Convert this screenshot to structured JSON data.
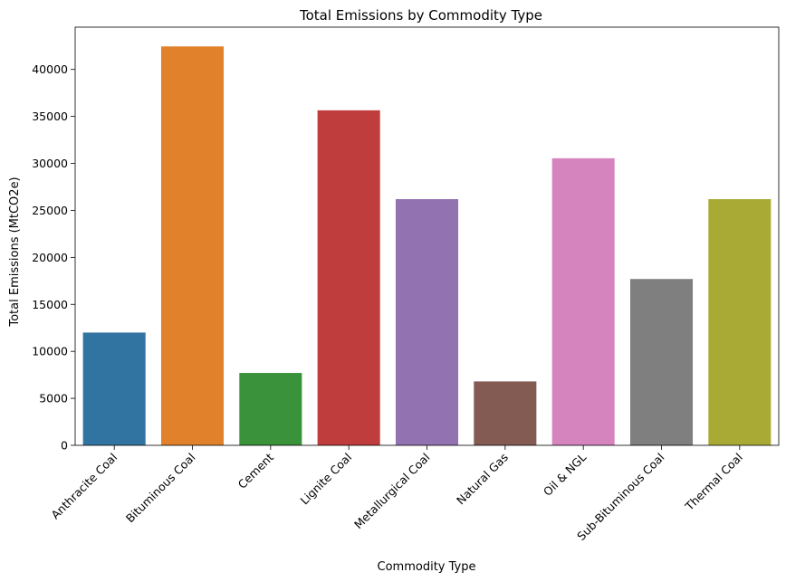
{
  "chart_data": {
    "type": "bar",
    "title": "Total Emissions by Commodity Type",
    "xlabel": "Commodity Type",
    "ylabel": "Total Emissions (MtCO2e)",
    "categories": [
      "Anthracite Coal",
      "Bituminous Coal",
      "Cement",
      "Lignite Coal",
      "Metallurgical Coal",
      "Natural Gas",
      "Oil & NGL",
      "Sub-Bituminous Coal",
      "Thermal Coal"
    ],
    "values": [
      12000,
      42450,
      7700,
      35650,
      26200,
      6800,
      30550,
      17700,
      26200
    ],
    "colors": [
      "#3274a1",
      "#e1812c",
      "#3a923a",
      "#c03d3e",
      "#9372b2",
      "#845b53",
      "#d684bd",
      "#7f7f7f",
      "#a9aa35"
    ],
    "ylim": [
      0,
      44500
    ],
    "yticks": [
      "0",
      "5000",
      "10000",
      "15000",
      "20000",
      "25000",
      "30000",
      "35000",
      "40000"
    ],
    "grid": false,
    "legend": "none"
  }
}
